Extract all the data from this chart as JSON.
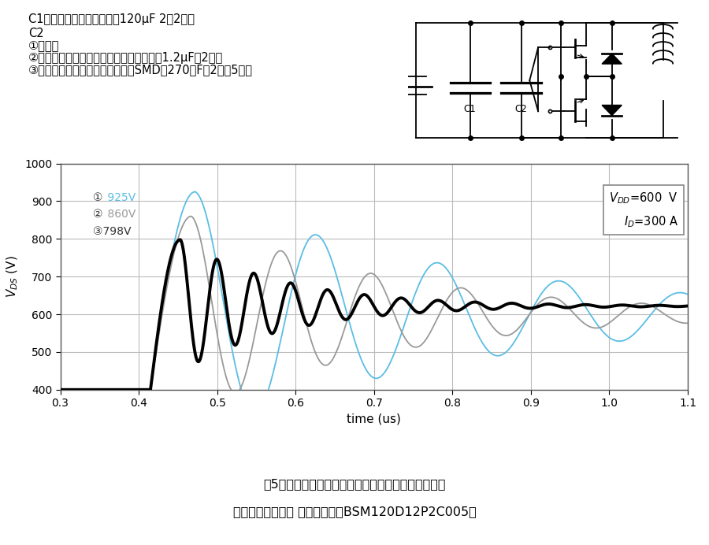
{
  "title_fig": "図5：スナバコンデンサの取り付けとサージ電圧の例",
  "subtitle_fig": "（評価基板を使用 モジュールはBSM120D12P2C005）",
  "xlabel": "time (us)",
  "ylabel": "VDS (V)",
  "xlim": [
    0.3,
    1.1
  ],
  "ylim": [
    400,
    1000
  ],
  "xticks": [
    0.3,
    0.4,
    0.5,
    0.6,
    0.7,
    0.8,
    0.9,
    1.0,
    1.1
  ],
  "yticks": [
    400,
    500,
    600,
    700,
    800,
    900,
    1000
  ],
  "info_line1": "C1：フィルムコンデンサ　120μF 2直2並列",
  "info_line2": "C2",
  "info_line3": "①：なし",
  "info_line4": "②：フィルムコンデンサ（リードタイプ）1.2μF　2並列",
  "info_line5": "③：積層セラミックコンデンサ（SMD）270ｎF　2直列5並列",
  "label1_circ": "①",
  "label1_val": " 925V",
  "label2_circ": "②",
  "label2_val": " 860V",
  "label3": "③798V",
  "color1": "#5bbde4",
  "color2": "#999999",
  "color3": "#000000",
  "background": "#ffffff",
  "grid_color": "#bbbbbb"
}
